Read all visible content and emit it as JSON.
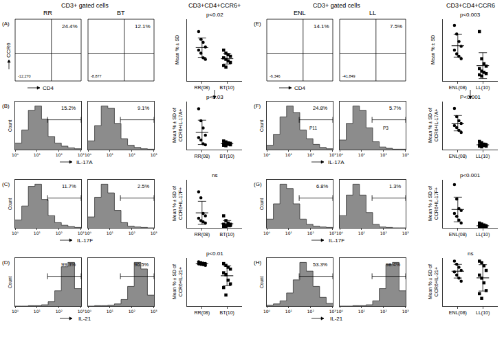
{
  "chart_data": [
    {
      "type": "flow_quadrant",
      "header": "CD3+ gated cells",
      "panel": "(A)",
      "title": "RR",
      "x_label": "CD4",
      "y_label": "CCR6",
      "gate_label": "24.4%",
      "corner_label": "-12,270",
      "tick_labels": false
    },
    {
      "type": "flow_quadrant",
      "title": "BT",
      "gate_label": "12.1%",
      "corner_label": "-8,877",
      "tick_labels": false
    },
    {
      "type": "dot",
      "header": "CD3+CD4+CCR6+",
      "y_label": [
        "Mean % ± SD"
      ],
      "annotations": [
        "p<0.02"
      ],
      "ylim": [
        0,
        40
      ],
      "tick_labels": "x",
      "color": "#000000",
      "categories": [
        "RR(08)",
        "BT(10)"
      ],
      "groups": [
        {
          "category": "RR(08)",
          "marker": "circle",
          "values": [
            32,
            27,
            25,
            22,
            20,
            18,
            15,
            14
          ],
          "mean": 21.6,
          "sd": 6.3
        },
        {
          "category": "BT(10)",
          "marker": "square",
          "values": [
            20,
            18,
            17,
            16,
            15,
            14,
            13,
            12,
            10,
            9
          ],
          "mean": 14.4,
          "sd": 3.4
        }
      ]
    },
    {
      "type": "histogram",
      "panel": "(B)",
      "x_label": "IL-17A",
      "y_label": "Count",
      "color": "#8c8c8c",
      "log": "x",
      "tick_labels": "x",
      "bins": [
        1,
        2,
        4,
        8,
        16,
        32,
        64,
        128,
        256,
        512,
        1024
      ],
      "counts": [
        15,
        45,
        90,
        100,
        70,
        30,
        15,
        8,
        4,
        2
      ],
      "xlim": [
        1,
        1024
      ],
      "xticks": [
        {
          "value": 1,
          "label": "10⁰"
        },
        {
          "value": 10,
          "label": "10¹"
        },
        {
          "value": 100,
          "label": "10²"
        },
        {
          "value": 1000,
          "label": "10³"
        }
      ],
      "ylim": [
        0,
        110
      ],
      "gate": 30,
      "gate_label": "15.2%"
    },
    {
      "type": "histogram",
      "color": "#8c8c8c",
      "log": "x",
      "tick_labels": "x",
      "bins": [
        1,
        2,
        4,
        8,
        16,
        32,
        64,
        128,
        256,
        512,
        1024
      ],
      "counts": [
        20,
        55,
        100,
        95,
        60,
        25,
        10,
        5,
        2,
        1
      ],
      "xlim": [
        1,
        1024
      ],
      "xticks": [
        {
          "value": 1,
          "label": "10⁰"
        },
        {
          "value": 10,
          "label": "10¹"
        },
        {
          "value": 100,
          "label": "10²"
        },
        {
          "value": 1000,
          "label": "10³"
        }
      ],
      "ylim": [
        0,
        110
      ],
      "gate": 30,
      "gate_label": "9.1%"
    },
    {
      "type": "dot",
      "y_label": [
        "Mean % ± SD of",
        "CCR6+IL-17A+"
      ],
      "annotations": [
        "p<0.03"
      ],
      "ylim": [
        0,
        100
      ],
      "tick_labels": "x",
      "color": "#000000",
      "categories": [
        "RR(08)",
        "BT(10)"
      ],
      "groups": [
        {
          "category": "RR(08)",
          "marker": "circle",
          "values": [
            85,
            60,
            45,
            30,
            25,
            20,
            12,
            10
          ],
          "mean": 35.9,
          "sd": 25.3
        },
        {
          "category": "BT(10)",
          "marker": "square",
          "values": [
            18,
            16,
            14,
            13,
            12,
            12,
            11,
            10,
            9,
            8
          ],
          "mean": 12.3,
          "sd": 3.0
        }
      ]
    },
    {
      "type": "histogram",
      "panel": "(C)",
      "x_label": "IL-17F",
      "y_label": "Count",
      "color": "#8c8c8c",
      "log": "x",
      "tick_labels": "x",
      "bins": [
        1,
        2,
        4,
        8,
        16,
        32,
        64,
        128,
        256,
        512,
        1024
      ],
      "counts": [
        18,
        50,
        95,
        100,
        65,
        28,
        12,
        6,
        3,
        1
      ],
      "xlim": [
        1,
        1024
      ],
      "xticks": [
        {
          "value": 1,
          "label": "10⁰"
        },
        {
          "value": 10,
          "label": "10¹"
        },
        {
          "value": 100,
          "label": "10²"
        },
        {
          "value": 1000,
          "label": "10³"
        }
      ],
      "ylim": [
        0,
        110
      ],
      "gate": 30,
      "gate_label": "11.7%"
    },
    {
      "type": "histogram",
      "color": "#8c8c8c",
      "log": "x",
      "tick_labels": "x",
      "bins": [
        1,
        2,
        4,
        8,
        16,
        32,
        64,
        128,
        256,
        512,
        1024
      ],
      "counts": [
        25,
        70,
        100,
        80,
        40,
        12,
        4,
        2,
        1,
        0
      ],
      "xlim": [
        1,
        1024
      ],
      "xticks": [
        {
          "value": 1,
          "label": "10⁰"
        },
        {
          "value": 10,
          "label": "10¹"
        },
        {
          "value": 100,
          "label": "10²"
        },
        {
          "value": 1000,
          "label": "10³"
        }
      ],
      "ylim": [
        0,
        110
      ],
      "gate": 30,
      "gate_label": "2.5%"
    },
    {
      "type": "dot",
      "y_label": [
        "Mean % ± SD of",
        "CCR6+IL-17F+"
      ],
      "annotations": [
        "ns"
      ],
      "ylim": [
        0,
        40
      ],
      "tick_labels": "x",
      "color": "#000000",
      "categories": [
        "RR(08)",
        "BT(10)"
      ],
      "groups": [
        {
          "category": "RR(08)",
          "marker": "circle",
          "values": [
            30,
            25,
            12,
            10,
            8,
            6,
            5,
            4
          ],
          "mean": 12.5,
          "sd": 9.6
        },
        {
          "category": "BT(10)",
          "marker": "square",
          "values": [
            10,
            6,
            4,
            3,
            3,
            2,
            2,
            2,
            1,
            1
          ],
          "mean": 3.4,
          "sd": 2.7
        }
      ]
    },
    {
      "type": "histogram",
      "panel": "(D)",
      "x_label": "IL-21",
      "y_label": "Count",
      "color": "#8c8c8c",
      "log": "x",
      "tick_labels": "x",
      "bins": [
        1,
        2,
        4,
        8,
        16,
        32,
        64,
        128,
        256,
        512,
        1024
      ],
      "counts": [
        0,
        0,
        1,
        1,
        3,
        10,
        35,
        90,
        100,
        40
      ],
      "xlim": [
        1,
        1024
      ],
      "xticks": [
        {
          "value": 1,
          "label": "10⁰"
        },
        {
          "value": 10,
          "label": "10¹"
        },
        {
          "value": 100,
          "label": "10²"
        },
        {
          "value": 1000,
          "label": "10³"
        }
      ],
      "ylim": [
        0,
        110
      ],
      "gate": 30,
      "gate_label": "99.3%"
    },
    {
      "type": "histogram",
      "color": "#8c8c8c",
      "log": "x",
      "tick_labels": "x",
      "bins": [
        1,
        2,
        4,
        8,
        16,
        32,
        64,
        128,
        256,
        512,
        1024
      ],
      "counts": [
        0,
        1,
        1,
        2,
        5,
        15,
        45,
        100,
        85,
        25
      ],
      "xlim": [
        1,
        1024
      ],
      "xticks": [
        {
          "value": 1,
          "label": "10⁰"
        },
        {
          "value": 10,
          "label": "10¹"
        },
        {
          "value": 100,
          "label": "10²"
        },
        {
          "value": 1000,
          "label": "10³"
        }
      ],
      "ylim": [
        0,
        110
      ],
      "gate": 30,
      "gate_label": "96.5%"
    },
    {
      "type": "dot",
      "y_label": [
        "Mean % ± SD of",
        "CCR6+IL-21+"
      ],
      "annotations": [
        "p<0.01"
      ],
      "ylim": [
        88,
        101
      ],
      "tick_labels": "x",
      "color": "#000000",
      "categories": [
        "RR(08)",
        "BT(10)"
      ],
      "groups": [
        {
          "category": "RR(08)",
          "marker": "circle",
          "values": [
            100,
            99.8,
            99.6,
            99.5,
            99.4,
            99.3,
            99.2,
            99
          ],
          "mean": 99.5,
          "sd": 0.3
        },
        {
          "category": "BT(10)",
          "marker": "square",
          "values": [
            99.5,
            99,
            98.5,
            98,
            97,
            96.5,
            95,
            94,
            93,
            91
          ],
          "mean": 96.2,
          "sd": 2.7
        }
      ]
    },
    {
      "type": "flow_quadrant",
      "header": "CD3+ gated cells",
      "panel": "(E)",
      "title": "ENL",
      "x_label": "CD4",
      "gate_label": "14.1%",
      "corner_label": "-6,346",
      "tick_labels": false
    },
    {
      "type": "flow_quadrant",
      "title": "LL",
      "gate_label": "7.5%",
      "corner_label": "-41,849",
      "tick_labels": false
    },
    {
      "type": "dot",
      "header": "CD3+CD4+CCR6",
      "y_label": [
        "Mean % ± SD"
      ],
      "annotations": [
        "p<0.003"
      ],
      "ylim": [
        0,
        50
      ],
      "tick_labels": "x",
      "color": "#000000",
      "categories": [
        "ENL(08)",
        "LL(10)"
      ],
      "groups": [
        {
          "category": "ENL(08)",
          "marker": "circle",
          "values": [
            45,
            38,
            32,
            28,
            25,
            22,
            20,
            18
          ],
          "mean": 28.5,
          "sd": 9.2
        },
        {
          "category": "LL(10)",
          "marker": "square",
          "values": [
            40,
            18,
            14,
            12,
            10,
            8,
            7,
            6,
            5,
            4
          ],
          "mean": 12.4,
          "sd": 10.5
        }
      ]
    },
    {
      "type": "histogram",
      "panel": "(F)",
      "x_label": "IL-17A",
      "y_label": "Count",
      "color": "#8c8c8c",
      "log": "x",
      "tick_labels": "x",
      "bins": [
        1,
        2,
        4,
        8,
        16,
        32,
        64,
        128,
        256,
        512,
        1024
      ],
      "counts": [
        10,
        35,
        75,
        100,
        85,
        45,
        25,
        12,
        5,
        2
      ],
      "xlim": [
        1,
        1024
      ],
      "xticks": [
        {
          "value": 1,
          "label": "10⁰"
        },
        {
          "value": 10,
          "label": "10¹"
        },
        {
          "value": 100,
          "label": "10²"
        },
        {
          "value": 1000,
          "label": "10³"
        }
      ],
      "ylim": [
        0,
        110
      ],
      "gate": 30,
      "gate_label": "24.8%",
      "gate_name": "P11"
    },
    {
      "type": "histogram",
      "color": "#8c8c8c",
      "log": "x",
      "tick_labels": "x",
      "bins": [
        1,
        2,
        4,
        8,
        16,
        32,
        64,
        128,
        256,
        512,
        1024
      ],
      "counts": [
        22,
        60,
        100,
        90,
        50,
        18,
        6,
        3,
        1,
        1
      ],
      "xlim": [
        1,
        1024
      ],
      "xticks": [
        {
          "value": 1,
          "label": "10⁰"
        },
        {
          "value": 10,
          "label": "10¹"
        },
        {
          "value": 100,
          "label": "10²"
        },
        {
          "value": 1000,
          "label": "10³"
        }
      ],
      "ylim": [
        0,
        110
      ],
      "gate": 30,
      "gate_label": "5.7%",
      "gate_name": "P3"
    },
    {
      "type": "dot",
      "y_label": [
        "Mean % ± SD of",
        "CCR6+IL-17A+"
      ],
      "annotations": [
        "P<0.001"
      ],
      "ylim": [
        0,
        70
      ],
      "tick_labels": "x",
      "color": "#000000",
      "categories": [
        "ENL(08)",
        "LL(10)"
      ],
      "groups": [
        {
          "category": "ENL(08)",
          "marker": "circle",
          "values": [
            60,
            48,
            42,
            38,
            35,
            32,
            28,
            25
          ],
          "mean": 38.5,
          "sd": 11.2
        },
        {
          "category": "LL(10)",
          "marker": "square",
          "values": [
            12,
            10,
            8,
            7,
            7,
            6,
            6,
            5,
            5,
            4
          ],
          "mean": 7,
          "sd": 2.4
        }
      ]
    },
    {
      "type": "histogram",
      "panel": "(G)",
      "x_label": "IL-17F",
      "y_label": "Count",
      "color": "#8c8c8c",
      "log": "x",
      "tick_labels": "x",
      "bins": [
        1,
        2,
        4,
        8,
        16,
        32,
        64,
        128,
        256,
        512,
        1024
      ],
      "counts": [
        20,
        55,
        100,
        90,
        55,
        20,
        8,
        4,
        2,
        1
      ],
      "xlim": [
        1,
        1024
      ],
      "xticks": [
        {
          "value": 1,
          "label": "10⁰"
        },
        {
          "value": 10,
          "label": "10¹"
        },
        {
          "value": 100,
          "label": "10²"
        },
        {
          "value": 1000,
          "label": "10³"
        }
      ],
      "ylim": [
        0,
        110
      ],
      "gate": 30,
      "gate_label": "6.8%"
    },
    {
      "type": "histogram",
      "color": "#8c8c8c",
      "log": "x",
      "tick_labels": "x",
      "bins": [
        1,
        2,
        4,
        8,
        16,
        32,
        64,
        128,
        256,
        512,
        1024
      ],
      "counts": [
        28,
        75,
        100,
        75,
        35,
        8,
        2,
        1,
        0,
        0
      ],
      "xlim": [
        1,
        1024
      ],
      "xticks": [
        {
          "value": 1,
          "label": "10⁰"
        },
        {
          "value": 10,
          "label": "10¹"
        },
        {
          "value": 100,
          "label": "10²"
        },
        {
          "value": 1000,
          "label": "10³"
        }
      ],
      "ylim": [
        0,
        110
      ],
      "gate": 30,
      "gate_label": "1.3%"
    },
    {
      "type": "dot",
      "y_label": [
        "Mean % ± SD of",
        "CCR6+IL-17F+"
      ],
      "annotations": [
        "p<0.001"
      ],
      "ylim": [
        0,
        50
      ],
      "tick_labels": "x",
      "color": "#000000",
      "categories": [
        "ENL(08)",
        "LL(10)"
      ],
      "groups": [
        {
          "category": "ENL(08)",
          "marker": "circle",
          "values": [
            45,
            30,
            20,
            18,
            15,
            12,
            8,
            5
          ],
          "mean": 19.1,
          "sd": 12.8
        },
        {
          "category": "LL(10)",
          "marker": "square",
          "values": [
            5,
            4,
            3,
            2,
            2,
            2,
            1,
            1,
            1,
            0.5
          ],
          "mean": 2.2,
          "sd": 1.4
        }
      ]
    },
    {
      "type": "histogram",
      "panel": "(H)",
      "x_label": "IL-21",
      "y_label": "Count",
      "color": "#8c8c8c",
      "log": "x",
      "tick_labels": "x",
      "bins": [
        1,
        2,
        4,
        8,
        16,
        32,
        64,
        128,
        256,
        512,
        1024
      ],
      "counts": [
        2,
        5,
        12,
        30,
        60,
        100,
        80,
        45,
        20,
        6
      ],
      "xlim": [
        1,
        1024
      ],
      "xticks": [
        {
          "value": 1,
          "label": "10⁰"
        },
        {
          "value": 10,
          "label": "10¹"
        },
        {
          "value": 100,
          "label": "10²"
        },
        {
          "value": 1000,
          "label": "10³"
        }
      ],
      "ylim": [
        0,
        110
      ],
      "gate": 30,
      "gate_label": "53.3%"
    },
    {
      "type": "histogram",
      "color": "#8c8c8c",
      "log": "x",
      "tick_labels": "x",
      "bins": [
        1,
        2,
        4,
        8,
        16,
        32,
        64,
        128,
        256,
        512,
        1024
      ],
      "counts": [
        0,
        0,
        1,
        1,
        3,
        12,
        40,
        95,
        100,
        35
      ],
      "xlim": [
        1,
        1024
      ],
      "xticks": [
        {
          "value": 1,
          "label": "10⁰"
        },
        {
          "value": 10,
          "label": "10¹"
        },
        {
          "value": 100,
          "label": "10²"
        },
        {
          "value": 1000,
          "label": "10³"
        }
      ],
      "ylim": [
        0,
        110
      ],
      "gate": 30,
      "gate_label": "98.4%"
    },
    {
      "type": "dot",
      "y_label": [
        "Mean % ± SD of",
        "CCR6+IL-21+"
      ],
      "annotations": [
        "ns"
      ],
      "ylim": [
        70,
        101
      ],
      "tick_labels": "x",
      "color": "#000000",
      "categories": [
        "ENL(08)",
        "LL(10)"
      ],
      "groups": [
        {
          "category": "ENL(08)",
          "marker": "circle",
          "values": [
            99,
            97,
            95,
            93,
            92,
            90,
            88,
            86
          ],
          "mean": 92.5,
          "sd": 4.4
        },
        {
          "category": "LL(10)",
          "marker": "square",
          "values": [
            99,
            98,
            96,
            93,
            90,
            88,
            85,
            80,
            78,
            75
          ],
          "mean": 88.2,
          "sd": 8.5
        }
      ]
    }
  ]
}
